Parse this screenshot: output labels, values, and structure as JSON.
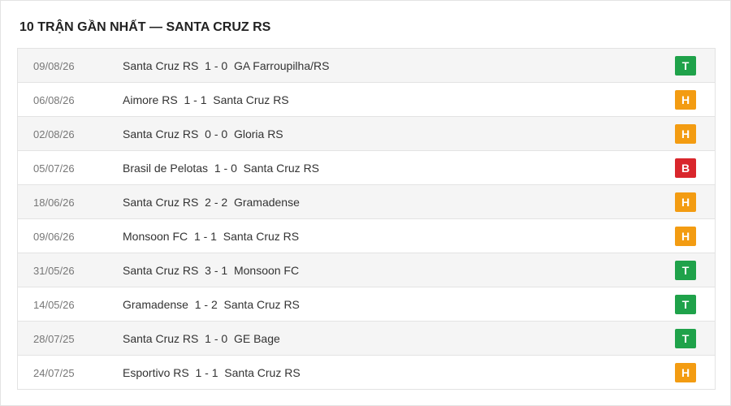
{
  "header": {
    "title": "10 TRẬN GẦN NHẤT — SANTA CRUZ RS"
  },
  "matches": [
    {
      "date": "09/08/26",
      "home": "Santa Cruz RS",
      "score": "1 - 0",
      "away": "GA Farroupilha/RS",
      "result": "T",
      "result_color": "#1fa24a"
    },
    {
      "date": "06/08/26",
      "home": "Aimore RS",
      "score": "1 - 1",
      "away": "Santa Cruz RS",
      "result": "H",
      "result_color": "#f39c12"
    },
    {
      "date": "02/08/26",
      "home": "Santa Cruz RS",
      "score": "0 - 0",
      "away": "Gloria RS",
      "result": "H",
      "result_color": "#f39c12"
    },
    {
      "date": "05/07/26",
      "home": "Brasil de Pelotas",
      "score": "1 - 0",
      "away": "Santa Cruz RS",
      "result": "B",
      "result_color": "#d9262c"
    },
    {
      "date": "18/06/26",
      "home": "Santa Cruz RS",
      "score": "2 - 2",
      "away": "Gramadense",
      "result": "H",
      "result_color": "#f39c12"
    },
    {
      "date": "09/06/26",
      "home": "Monsoon FC",
      "score": "1 - 1",
      "away": "Santa Cruz RS",
      "result": "H",
      "result_color": "#f39c12"
    },
    {
      "date": "31/05/26",
      "home": "Santa Cruz RS",
      "score": "3 - 1",
      "away": "Monsoon FC",
      "result": "T",
      "result_color": "#1fa24a"
    },
    {
      "date": "14/05/26",
      "home": "Gramadense",
      "score": "1 - 2",
      "away": "Santa Cruz RS",
      "result": "T",
      "result_color": "#1fa24a"
    },
    {
      "date": "28/07/25",
      "home": "Santa Cruz RS",
      "score": "1 - 0",
      "away": "GE Bage",
      "result": "T",
      "result_color": "#1fa24a"
    },
    {
      "date": "24/07/25",
      "home": "Esportivo RS",
      "score": "1 - 1",
      "away": "Santa Cruz RS",
      "result": "H",
      "result_color": "#f39c12"
    }
  ]
}
